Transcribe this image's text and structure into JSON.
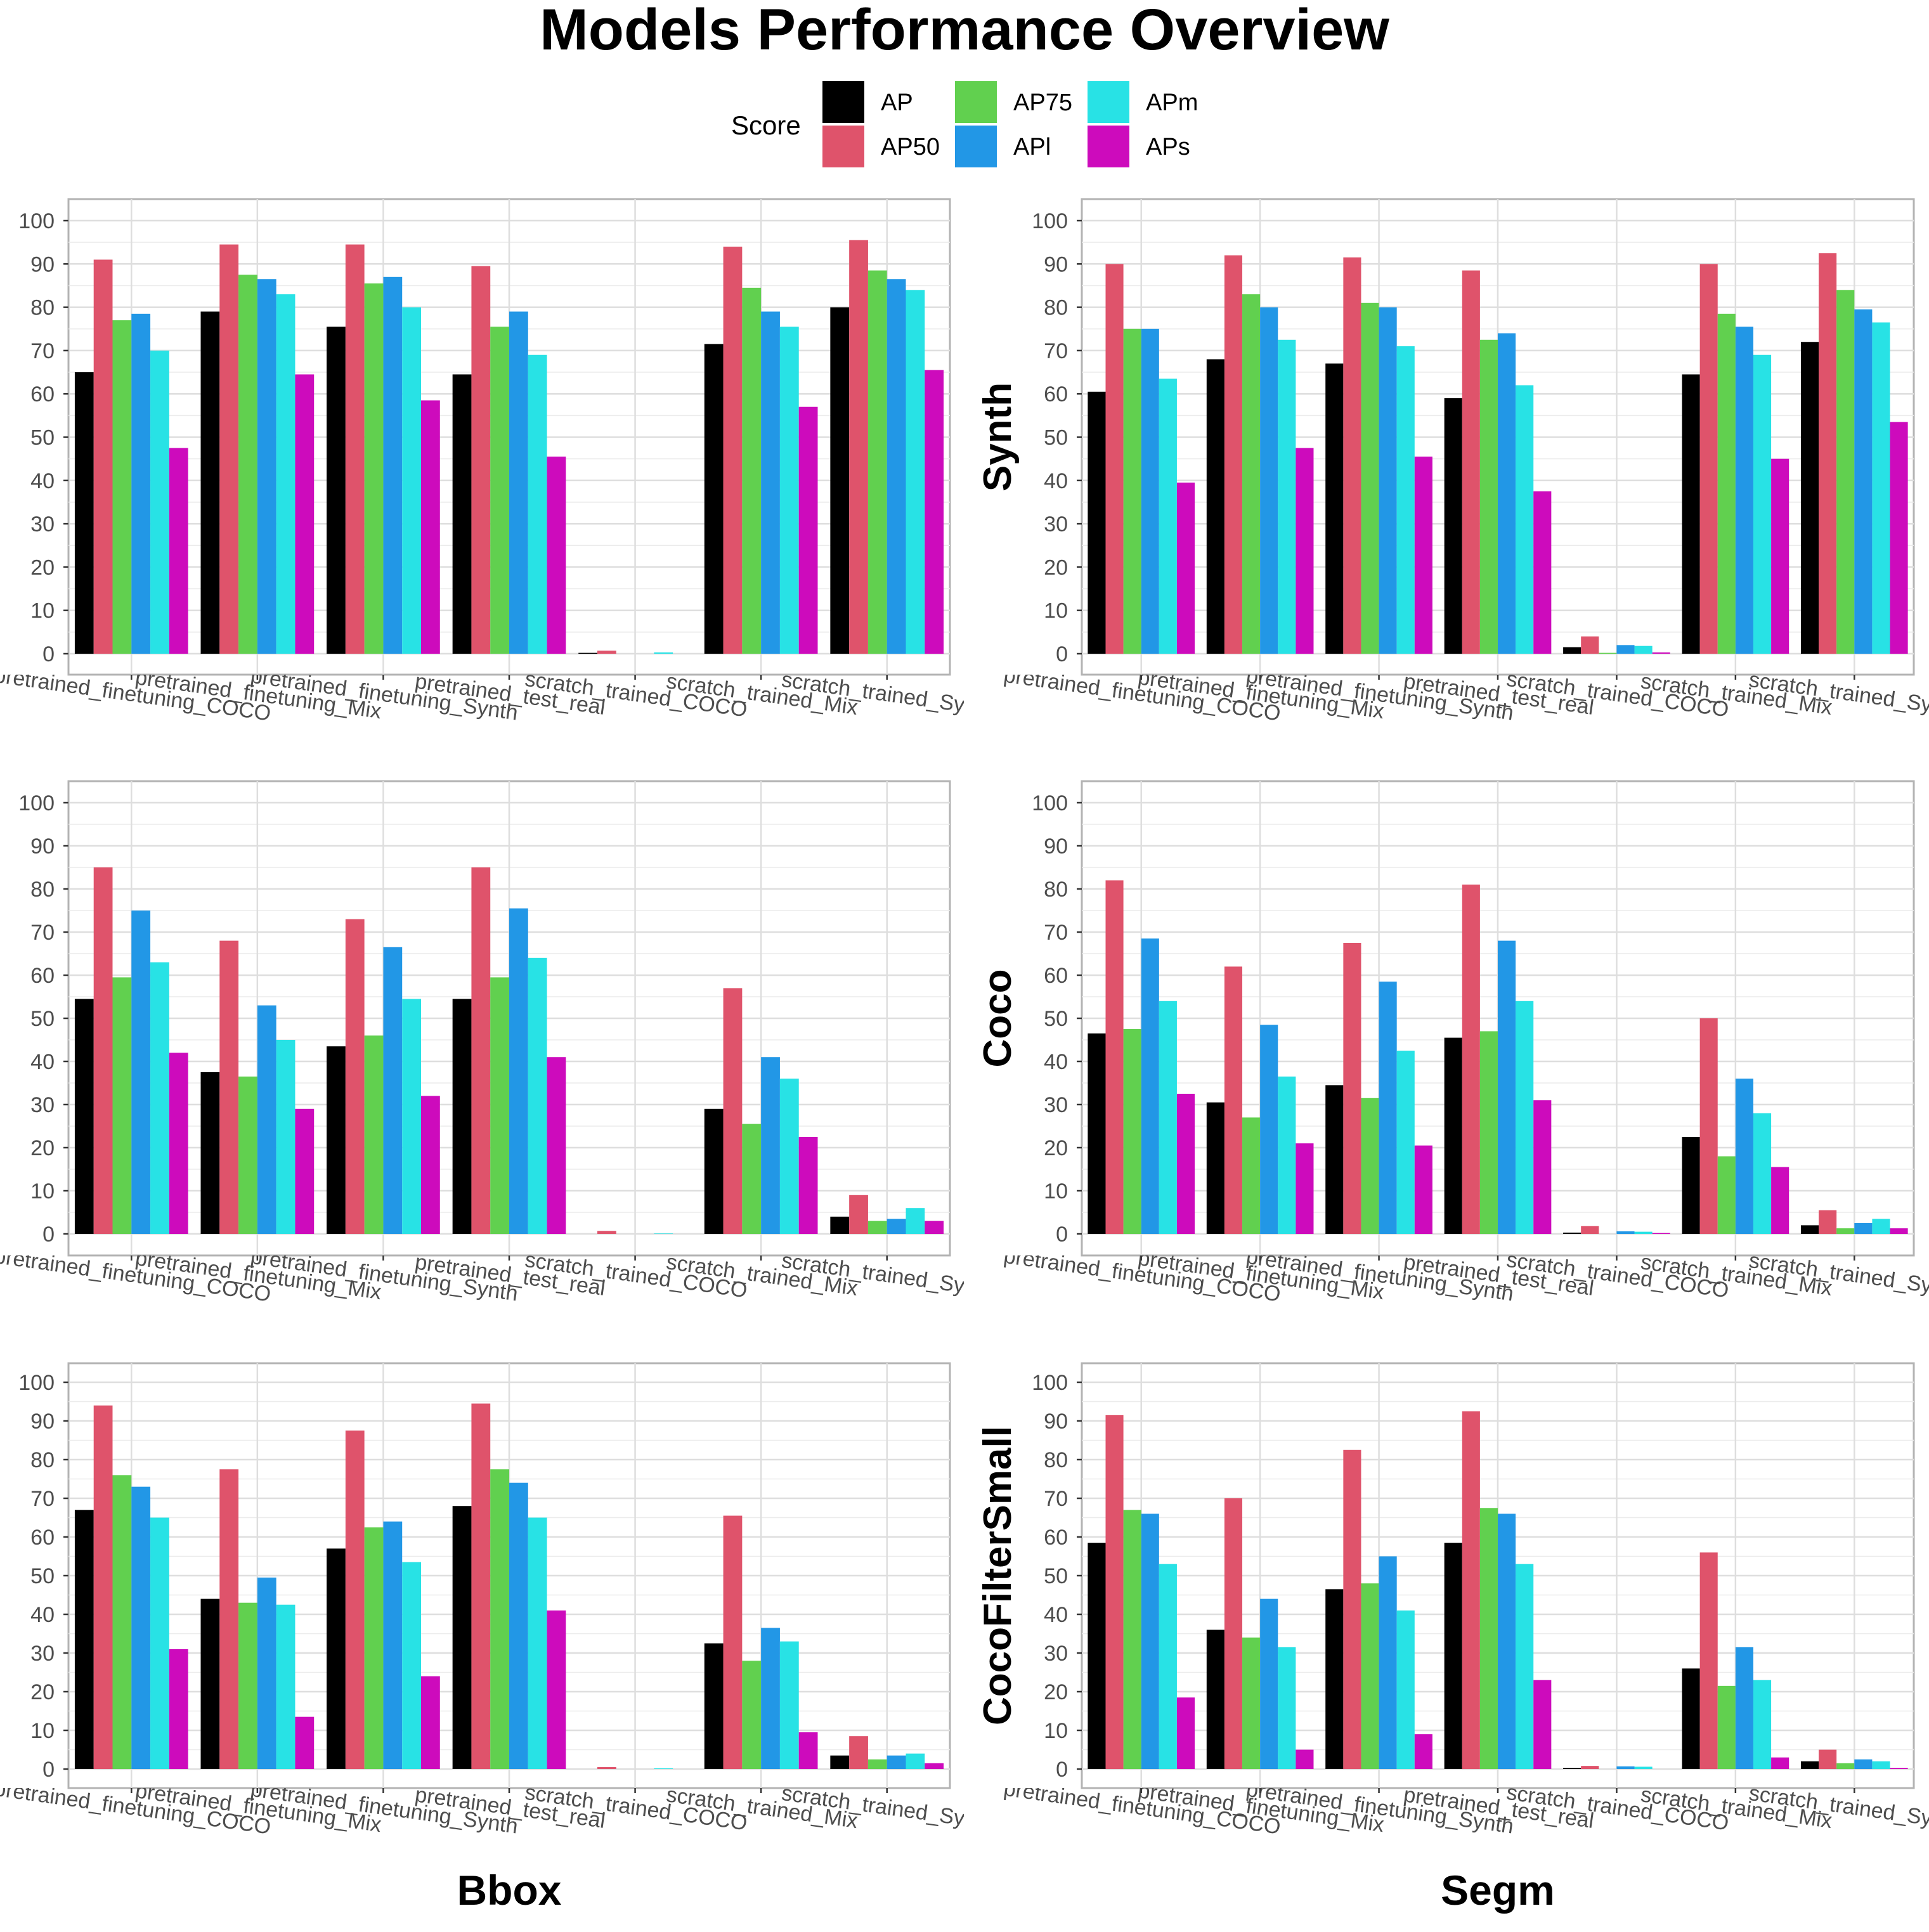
{
  "title": "Models Performance Overview",
  "legend": {
    "title": "Score",
    "position": "top",
    "items": [
      {
        "label": "AP",
        "color": "#000000"
      },
      {
        "label": "AP50",
        "color": "#DF536B"
      },
      {
        "label": "AP75",
        "color": "#61D04F"
      },
      {
        "label": "APl",
        "color": "#2297E6"
      },
      {
        "label": "APm",
        "color": "#28E2E5"
      },
      {
        "label": "APs",
        "color": "#CD0BBC"
      }
    ]
  },
  "column_labels": [
    "Bbox",
    "Segm"
  ],
  "row_labels": [
    "Synth",
    "Coco",
    "CocoFilterSmall"
  ],
  "chart_data": [
    {
      "type": "bar",
      "row": "Synth",
      "column": "Bbox",
      "categories": [
        "pretrained_finetuning_COCO",
        "pretrained_finetuning_Mix",
        "pretrained_finetuning_Synth",
        "pretrained_test_real",
        "scratch_trained_COCO",
        "scratch_trained_Mix",
        "scratch_trained_Synth"
      ],
      "ylim": [
        0,
        100
      ],
      "yticks": [
        0,
        10,
        20,
        30,
        40,
        50,
        60,
        70,
        80,
        90,
        100
      ],
      "grid": true,
      "series": [
        {
          "name": "AP",
          "values": [
            65,
            79,
            75.5,
            64.5,
            0.2,
            71.5,
            80
          ]
        },
        {
          "name": "AP50",
          "values": [
            91,
            94.5,
            94.5,
            89.5,
            0.7,
            94,
            95.5
          ]
        },
        {
          "name": "AP75",
          "values": [
            77,
            87.5,
            85.5,
            75.5,
            0,
            84.5,
            88.5
          ]
        },
        {
          "name": "APl",
          "values": [
            78.5,
            86.5,
            87,
            79,
            0,
            79,
            86.5
          ]
        },
        {
          "name": "APm",
          "values": [
            70,
            83,
            80,
            69,
            0.3,
            75.5,
            84
          ]
        },
        {
          "name": "APs",
          "values": [
            47.5,
            64.5,
            58.5,
            45.5,
            0,
            57,
            65.5
          ]
        }
      ]
    },
    {
      "type": "bar",
      "row": "Synth",
      "column": "Segm",
      "categories": [
        "pretrained_finetuning_COCO",
        "pretrained_finetuning_Mix",
        "pretrained_finetuning_Synth",
        "pretrained_test_real",
        "scratch_trained_COCO",
        "scratch_trained_Mix",
        "scratch_trained_Synth"
      ],
      "ylim": [
        0,
        100
      ],
      "yticks": [
        0,
        10,
        20,
        30,
        40,
        50,
        60,
        70,
        80,
        90,
        100
      ],
      "grid": true,
      "series": [
        {
          "name": "AP",
          "values": [
            60.5,
            68,
            67,
            59,
            1.5,
            64.5,
            72
          ]
        },
        {
          "name": "AP50",
          "values": [
            90,
            92,
            91.5,
            88.5,
            4,
            90,
            92.5
          ]
        },
        {
          "name": "AP75",
          "values": [
            75,
            83,
            81,
            72.5,
            0.2,
            78.5,
            84
          ]
        },
        {
          "name": "APl",
          "values": [
            75,
            80,
            80,
            74,
            2,
            75.5,
            79.5
          ]
        },
        {
          "name": "APm",
          "values": [
            63.5,
            72.5,
            71,
            62,
            1.8,
            69,
            76.5
          ]
        },
        {
          "name": "APs",
          "values": [
            39.5,
            47.5,
            45.5,
            37.5,
            0.3,
            45,
            53.5
          ]
        }
      ]
    },
    {
      "type": "bar",
      "row": "Coco",
      "column": "Bbox",
      "categories": [
        "pretrained_finetuning_COCO",
        "pretrained_finetuning_Mix",
        "pretrained_finetuning_Synth",
        "pretrained_test_real",
        "scratch_trained_COCO",
        "scratch_trained_Mix",
        "scratch_trained_Synth"
      ],
      "ylim": [
        0,
        100
      ],
      "yticks": [
        0,
        10,
        20,
        30,
        40,
        50,
        60,
        70,
        80,
        90,
        100
      ],
      "grid": true,
      "series": [
        {
          "name": "AP",
          "values": [
            54.5,
            37.5,
            43.5,
            54.5,
            0,
            29,
            4
          ]
        },
        {
          "name": "AP50",
          "values": [
            85,
            68,
            73,
            85,
            0.7,
            57,
            9
          ]
        },
        {
          "name": "AP75",
          "values": [
            59.5,
            36.5,
            46,
            59.5,
            0,
            25.5,
            3
          ]
        },
        {
          "name": "APl",
          "values": [
            75,
            53,
            66.5,
            75.5,
            0,
            41,
            3.5
          ]
        },
        {
          "name": "APm",
          "values": [
            63,
            45,
            54.5,
            64,
            0.1,
            36,
            6
          ]
        },
        {
          "name": "APs",
          "values": [
            42,
            29,
            32,
            41,
            0,
            22.5,
            3
          ]
        }
      ]
    },
    {
      "type": "bar",
      "row": "Coco",
      "column": "Segm",
      "categories": [
        "pretrained_finetuning_COCO",
        "pretrained_finetuning_Mix",
        "pretrained_finetuning_Synth",
        "pretrained_test_real",
        "scratch_trained_COCO",
        "scratch_trained_Mix",
        "scratch_trained_Synth"
      ],
      "ylim": [
        0,
        100
      ],
      "yticks": [
        0,
        10,
        20,
        30,
        40,
        50,
        60,
        70,
        80,
        90,
        100
      ],
      "grid": true,
      "series": [
        {
          "name": "AP",
          "values": [
            46.5,
            30.5,
            34.5,
            45.5,
            0.3,
            22.5,
            2
          ]
        },
        {
          "name": "AP50",
          "values": [
            82,
            62,
            67.5,
            81,
            1.8,
            50,
            5.5
          ]
        },
        {
          "name": "AP75",
          "values": [
            47.5,
            27,
            31.5,
            47,
            0,
            18,
            1.3
          ]
        },
        {
          "name": "APl",
          "values": [
            68.5,
            48.5,
            58.5,
            68,
            0.6,
            36,
            2.5
          ]
        },
        {
          "name": "APm",
          "values": [
            54,
            36.5,
            42.5,
            54,
            0.5,
            28,
            3.5
          ]
        },
        {
          "name": "APs",
          "values": [
            32.5,
            21,
            20.5,
            31,
            0.2,
            15.5,
            1.3
          ]
        }
      ]
    },
    {
      "type": "bar",
      "row": "CocoFilterSmall",
      "column": "Bbox",
      "categories": [
        "pretrained_finetuning_COCO",
        "pretrained_finetuning_Mix",
        "pretrained_finetuning_Synth",
        "pretrained_test_real",
        "scratch_trained_COCO",
        "scratch_trained_Mix",
        "scratch_trained_Synth"
      ],
      "ylim": [
        0,
        100
      ],
      "yticks": [
        0,
        10,
        20,
        30,
        40,
        50,
        60,
        70,
        80,
        90,
        100
      ],
      "grid": true,
      "series": [
        {
          "name": "AP",
          "values": [
            67,
            44,
            57,
            68,
            0,
            32.5,
            3.5
          ]
        },
        {
          "name": "AP50",
          "values": [
            94,
            77.5,
            87.5,
            94.5,
            0.5,
            65.5,
            8.5
          ]
        },
        {
          "name": "AP75",
          "values": [
            76,
            43,
            62.5,
            77.5,
            0,
            28,
            2.5
          ]
        },
        {
          "name": "APl",
          "values": [
            73,
            49.5,
            64,
            74,
            0,
            36.5,
            3.5
          ]
        },
        {
          "name": "APm",
          "values": [
            65,
            42.5,
            53.5,
            65,
            0.2,
            33,
            4
          ]
        },
        {
          "name": "APs",
          "values": [
            31,
            13.5,
            24,
            41,
            0,
            9.5,
            1.5
          ]
        }
      ]
    },
    {
      "type": "bar",
      "row": "CocoFilterSmall",
      "column": "Segm",
      "categories": [
        "pretrained_finetuning_COCO",
        "pretrained_finetuning_Mix",
        "pretrained_finetuning_Synth",
        "pretrained_test_real",
        "scratch_trained_COCO",
        "scratch_trained_Mix",
        "scratch_trained_Synth"
      ],
      "ylim": [
        0,
        100
      ],
      "yticks": [
        0,
        10,
        20,
        30,
        40,
        50,
        60,
        70,
        80,
        90,
        100
      ],
      "grid": true,
      "series": [
        {
          "name": "AP",
          "values": [
            58.5,
            36,
            46.5,
            58.5,
            0.3,
            26,
            2
          ]
        },
        {
          "name": "AP50",
          "values": [
            91.5,
            70,
            82.5,
            92.5,
            0.8,
            56,
            5
          ]
        },
        {
          "name": "AP75",
          "values": [
            67,
            34,
            48,
            67.5,
            0,
            21.5,
            1.5
          ]
        },
        {
          "name": "APl",
          "values": [
            66,
            44,
            55,
            66,
            0.7,
            31.5,
            2.5
          ]
        },
        {
          "name": "APm",
          "values": [
            53,
            31.5,
            41,
            53,
            0.6,
            23,
            2
          ]
        },
        {
          "name": "APs",
          "values": [
            18.5,
            5,
            9,
            23,
            0,
            3,
            0.3
          ]
        }
      ]
    }
  ]
}
